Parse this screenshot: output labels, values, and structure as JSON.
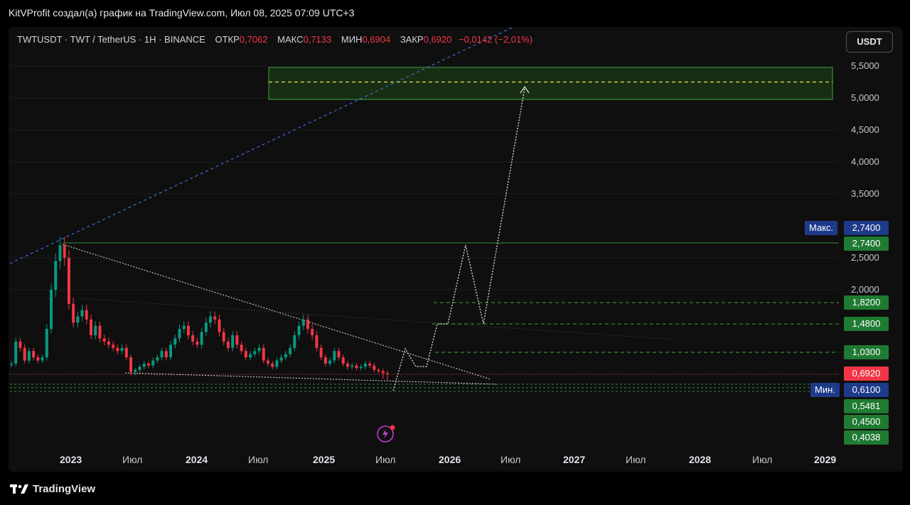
{
  "header": {
    "title": "KitVProfit создал(а) график на TradingView.com, Июл 08, 2025 07:09 UTC+3"
  },
  "legend": {
    "symbol": "TWTUSDT · TWT / TetherUS · 1H · BINANCE",
    "open_label": "ОТКР",
    "open": "0,7062",
    "high_label": "МАКС",
    "high": "0,7133",
    "low_label": "МИН",
    "low": "0,6904",
    "close_label": "ЗАКР",
    "close": "0,6920",
    "change": "−0,0142 (−2,01%)"
  },
  "unit_button": "USDT",
  "footer": {
    "brand": "TradingView"
  },
  "icons": {
    "logo": "tradingview-logo-icon",
    "alert": "lightning-alert-icon"
  },
  "colors": {
    "up": "#089981",
    "down": "#f23645",
    "accent_green": "#1f7a32",
    "accent_blue": "#1e3a8a",
    "zone": "#1b3a14"
  },
  "chart_data": {
    "type": "candlestick",
    "y_ticks": [
      "5,5000",
      "5,0000",
      "4,5000",
      "4,0000",
      "3,5000",
      "2,5000",
      "2,0000"
    ],
    "x_ticks": [
      {
        "label": "2023",
        "bold": true
      },
      {
        "label": "Июл",
        "bold": false
      },
      {
        "label": "2024",
        "bold": true
      },
      {
        "label": "Июл",
        "bold": false
      },
      {
        "label": "2025",
        "bold": true
      },
      {
        "label": "Июл",
        "bold": false
      },
      {
        "label": "2026",
        "bold": true
      },
      {
        "label": "Июл",
        "bold": false
      },
      {
        "label": "2027",
        "bold": true
      },
      {
        "label": "Июл",
        "bold": false
      },
      {
        "label": "2028",
        "bold": true
      },
      {
        "label": "Июл",
        "bold": false
      },
      {
        "label": "2029",
        "bold": true
      }
    ],
    "price_tags": [
      {
        "value": "2,7400",
        "color": "#1f7a32"
      },
      {
        "value": "1,8200",
        "color": "#1f7a32"
      },
      {
        "value": "1,4800",
        "color": "#1f7a32"
      },
      {
        "value": "1,0300",
        "color": "#1f7a32"
      },
      {
        "value": "0,6920",
        "color": "#f23645"
      },
      {
        "value": "0,6100",
        "color": "#1e3a8a"
      },
      {
        "value": "0,5481",
        "color": "#1f7a32"
      },
      {
        "value": "0,4500",
        "color": "#1f7a32"
      },
      {
        "value": "0,4038",
        "color": "#1f7a32"
      }
    ],
    "side_tags": [
      {
        "label": "Макс.",
        "value": "2,7400"
      },
      {
        "label": "Мин.",
        "value": "0,6100"
      }
    ],
    "levels": [
      2.74,
      1.82,
      1.48,
      1.03,
      0.692,
      0.61,
      0.5481,
      0.45,
      0.4038
    ],
    "target_zone": [
      5.0,
      5.5
    ],
    "target_mid": 5.25,
    "candles_close": [
      0.85,
      1.2,
      1.1,
      0.9,
      1.05,
      0.95,
      0.9,
      0.95,
      1.4,
      2.0,
      2.45,
      2.7,
      2.5,
      1.8,
      1.5,
      1.6,
      1.7,
      1.55,
      1.3,
      1.45,
      1.25,
      1.2,
      1.15,
      1.1,
      1.05,
      1.1,
      0.95,
      0.72,
      0.75,
      0.8,
      0.85,
      0.82,
      0.9,
      0.95,
      1.05,
      0.95,
      1.15,
      1.25,
      1.4,
      1.45,
      1.3,
      1.2,
      1.15,
      1.35,
      1.5,
      1.6,
      1.55,
      1.35,
      1.2,
      1.1,
      1.3,
      1.15,
      1.05,
      0.95,
      1.0,
      1.05,
      1.1,
      0.9,
      0.85,
      0.8,
      0.9,
      0.95,
      1.0,
      1.1,
      1.3,
      1.45,
      1.55,
      1.4,
      1.3,
      1.1,
      0.95,
      0.85,
      0.9,
      1.05,
      0.95,
      0.85,
      0.8,
      0.82,
      0.78,
      0.8,
      0.85,
      0.82,
      0.75,
      0.73,
      0.7,
      0.69
    ],
    "projection_path": [
      [
        0.69,
        0.61
      ],
      [
        0.69,
        1.05
      ],
      [
        0.78,
        1.05
      ],
      [
        0.69,
        0.95
      ],
      [
        0.78,
        1.48
      ],
      [
        0.86,
        1.48
      ],
      [
        0.96,
        2.8
      ],
      [
        1.03,
        1.48
      ],
      [
        1.13,
        5.15
      ]
    ]
  }
}
